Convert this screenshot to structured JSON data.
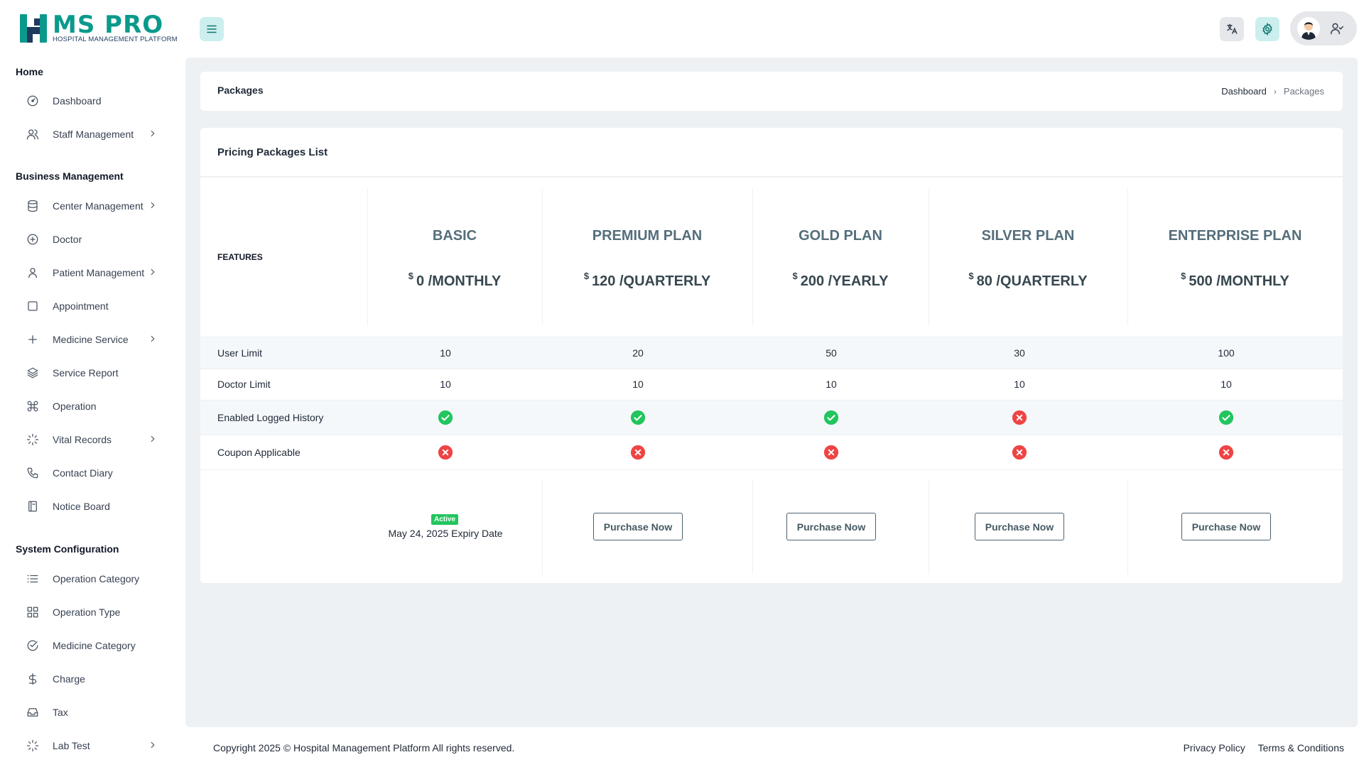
{
  "brand": {
    "name": "MS PRO",
    "tagline": "HOSPITAL MANAGEMENT PLATFORM",
    "accent": "#0a9a8b"
  },
  "sidebar": {
    "sections": [
      {
        "title": "Home",
        "items": [
          {
            "label": "Dashboard",
            "icon": "dashboard-icon",
            "has_children": false
          },
          {
            "label": "Staff Management",
            "icon": "users-icon",
            "has_children": true
          }
        ]
      },
      {
        "title": "Business Management",
        "items": [
          {
            "label": "Center Management",
            "icon": "database-icon",
            "has_children": true
          },
          {
            "label": "Doctor",
            "icon": "plus-circle-icon",
            "has_children": false
          },
          {
            "label": "Patient Management",
            "icon": "user-icon",
            "has_children": true
          },
          {
            "label": "Appointment",
            "icon": "square-icon",
            "has_children": false
          },
          {
            "label": "Medicine Service",
            "icon": "plus-icon",
            "has_children": true
          },
          {
            "label": "Service Report",
            "icon": "layers-icon",
            "has_children": false
          },
          {
            "label": "Operation",
            "icon": "command-icon",
            "has_children": false
          },
          {
            "label": "Vital Records",
            "icon": "loader-icon",
            "has_children": true
          },
          {
            "label": "Contact Diary",
            "icon": "phone-icon",
            "has_children": false
          },
          {
            "label": "Notice Board",
            "icon": "book-icon",
            "has_children": false
          }
        ]
      },
      {
        "title": "System Configuration",
        "items": [
          {
            "label": "Operation Category",
            "icon": "list-icon",
            "has_children": false
          },
          {
            "label": "Operation Type",
            "icon": "grid-icon",
            "has_children": false
          },
          {
            "label": "Medicine Category",
            "icon": "check-circle-icon",
            "has_children": false
          },
          {
            "label": "Charge",
            "icon": "dollar-icon",
            "has_children": false
          },
          {
            "label": "Tax",
            "icon": "inbox-icon",
            "has_children": false
          },
          {
            "label": "Lab Test",
            "icon": "loader-icon",
            "has_children": true
          }
        ]
      }
    ]
  },
  "header": {
    "menu_icon": "hamburger-icon",
    "translate_icon": "translate-icon",
    "settings_icon": "gear-icon",
    "user_icon": "user-check-icon"
  },
  "page": {
    "title": "Packages",
    "breadcrumb": [
      "Dashboard",
      "Packages"
    ]
  },
  "packages": {
    "card_title": "Pricing Packages List",
    "features_label": "FEATURES",
    "plans": [
      {
        "name": "BASIC",
        "currency": "$",
        "price": "0 /MONTHLY"
      },
      {
        "name": "PREMIUM PLAN",
        "currency": "$",
        "price": "120 /QUARTERLY"
      },
      {
        "name": "GOLD PLAN",
        "currency": "$",
        "price": "200 /YEARLY"
      },
      {
        "name": "SILVER PLAN",
        "currency": "$",
        "price": "80 /QUARTERLY"
      },
      {
        "name": "ENTERPRISE PLAN",
        "currency": "$",
        "price": "500 /MONTHLY"
      }
    ],
    "rows": [
      {
        "label": "User Limit",
        "type": "text",
        "values": [
          "10",
          "20",
          "50",
          "30",
          "100"
        ]
      },
      {
        "label": "Doctor Limit",
        "type": "text",
        "values": [
          "10",
          "10",
          "10",
          "10",
          "10"
        ]
      },
      {
        "label": "Enabled Logged History",
        "type": "bool",
        "values": [
          true,
          true,
          true,
          false,
          true
        ]
      },
      {
        "label": "Coupon Applicable",
        "type": "bool",
        "values": [
          false,
          false,
          false,
          false,
          false
        ]
      }
    ],
    "active_badge": "Active",
    "expiry_text": "May 24, 2025 Expiry Date",
    "purchase_label": "Purchase Now",
    "colors": {
      "yes": "#22c55e",
      "no": "#ef4444"
    }
  },
  "footer": {
    "copyright": "Copyright 2025 © Hospital Management Platform All rights reserved.",
    "links": [
      "Privacy Policy",
      "Terms & Conditions"
    ]
  }
}
